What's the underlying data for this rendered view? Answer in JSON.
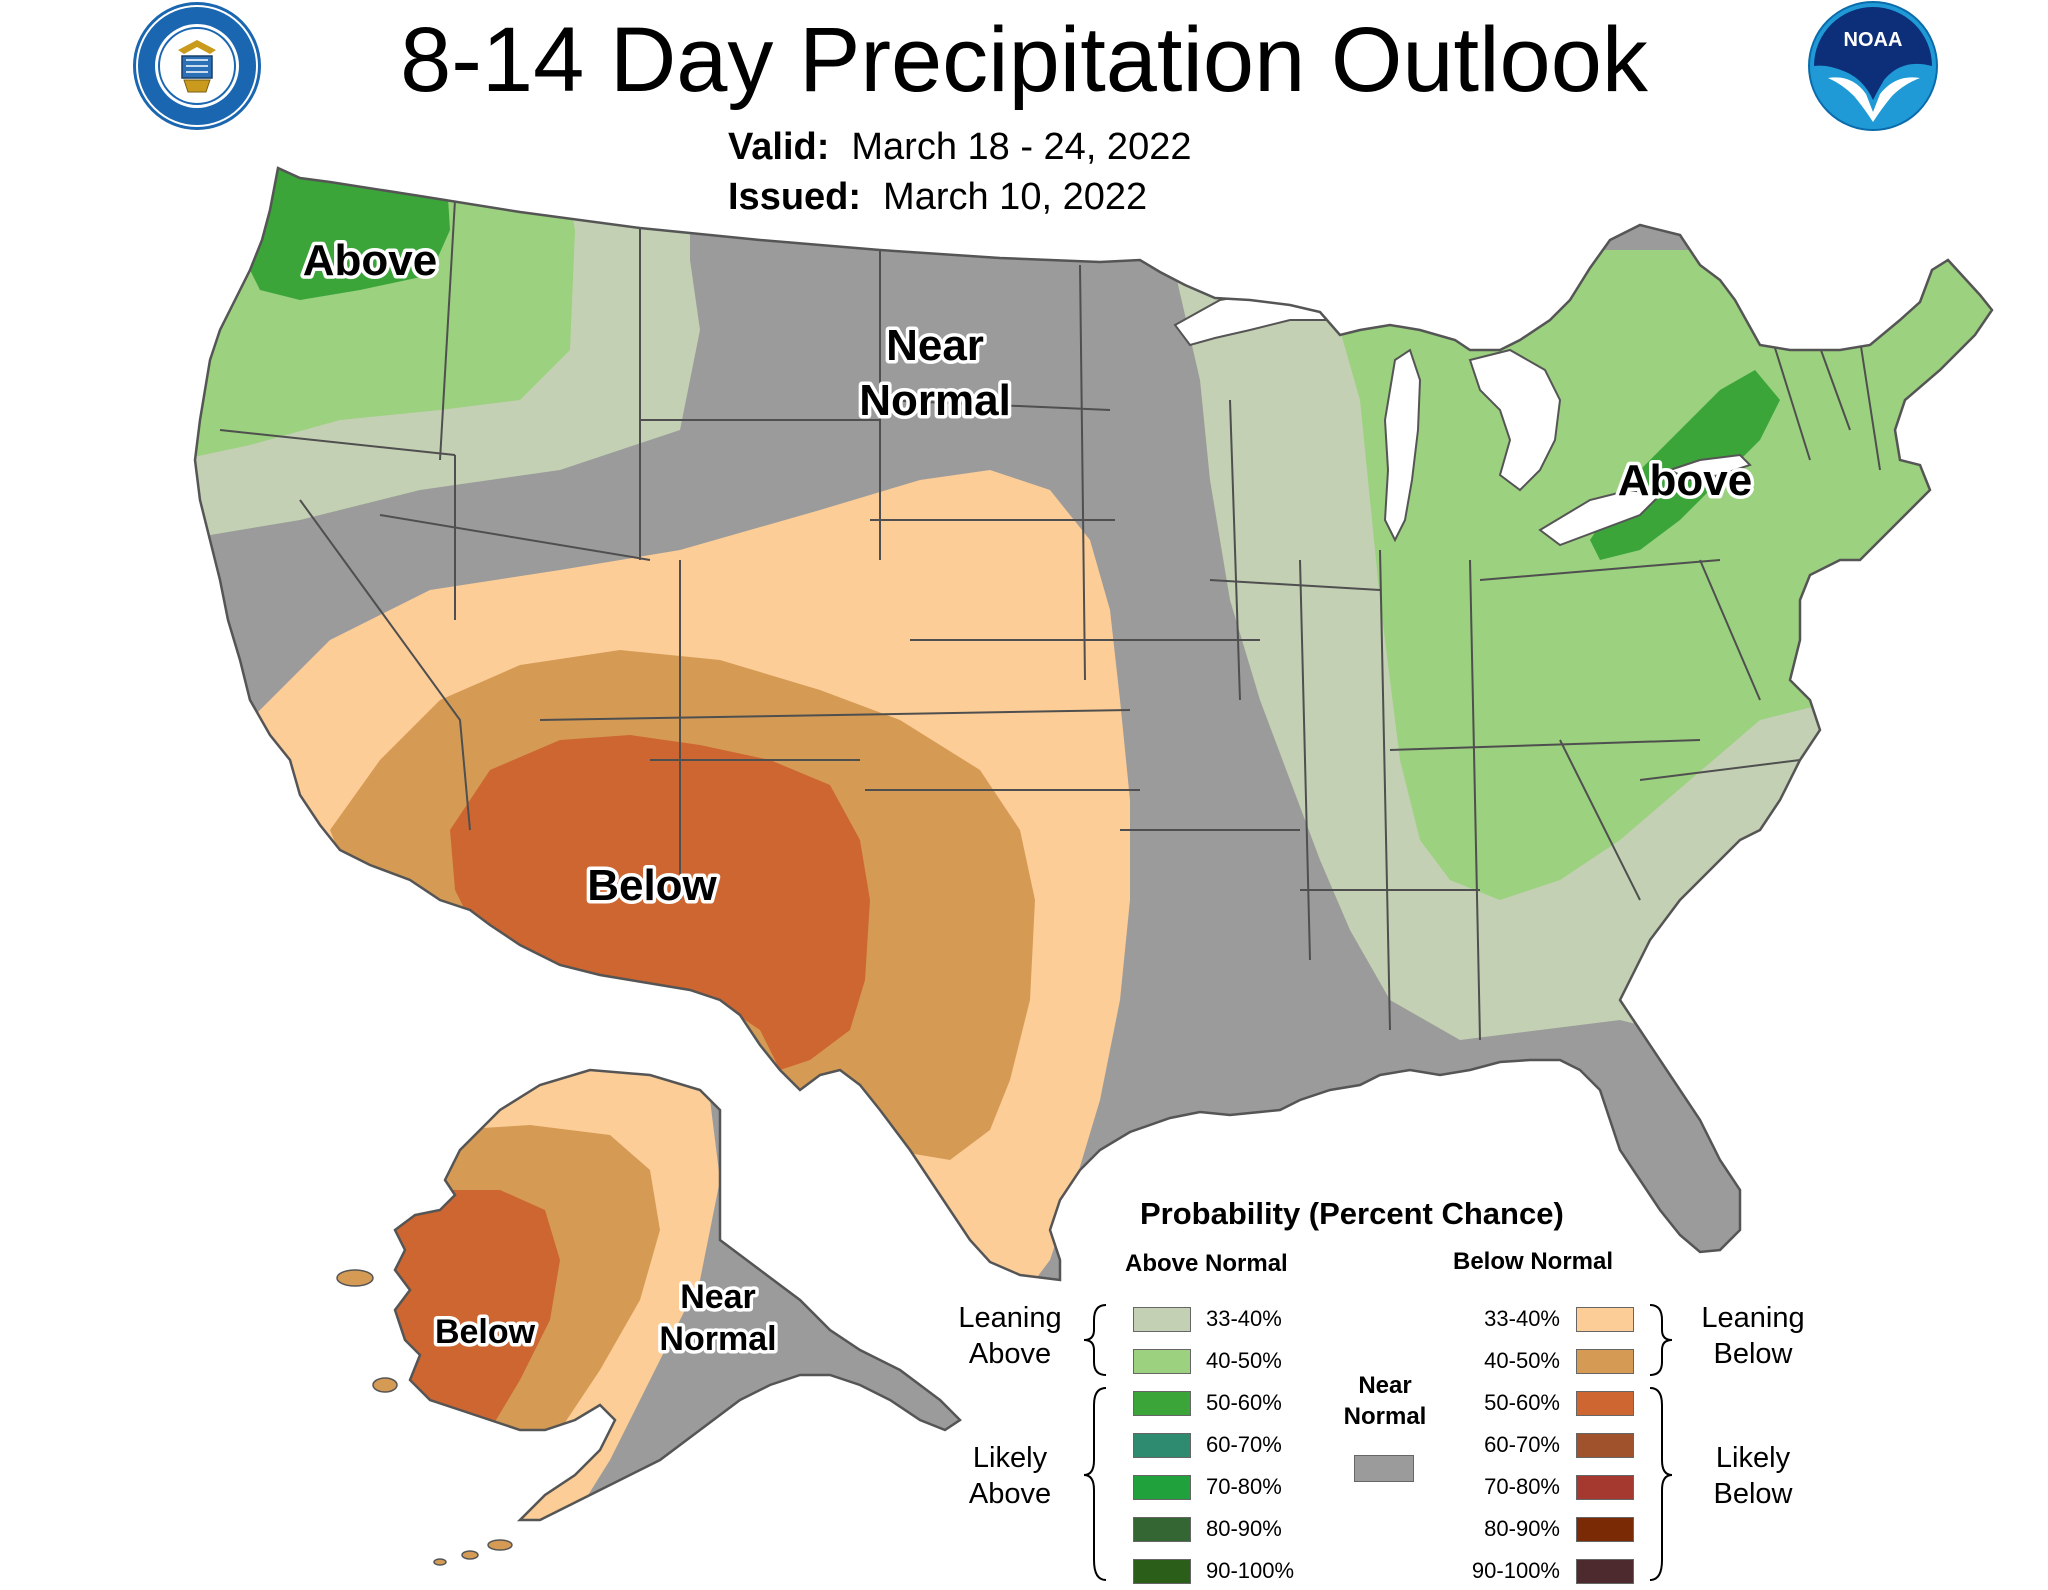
{
  "header": {
    "title": "8-14 Day Precipitation Outlook",
    "valid_label": "Valid:",
    "valid_value": "March 18 - 24, 2022",
    "issued_label": "Issued:",
    "issued_value": "March 10, 2022",
    "left_logo": "department-of-commerce-seal",
    "left_logo_text": "DEPARTMENT OF COMMERCE · UNITED STATES OF AMERICA",
    "right_logo": "noaa-logo",
    "right_logo_text": "NOAA"
  },
  "map": {
    "labels": {
      "above_nw": "Above",
      "near_normal_1": "Near",
      "near_normal_2": "Normal",
      "above_ne": "Above",
      "below_sw": "Below",
      "below_ak": "Below",
      "ak_near_1": "Near",
      "ak_near_2": "Normal"
    },
    "colors": {
      "above_33_40": "#c3d0b3",
      "above_40_50": "#9bd17f",
      "above_50_60": "#3ba53a",
      "near_normal": "#9b9b9b",
      "below_33_40": "#fdcd97",
      "below_40_50": "#d59b55",
      "below_50_60": "#cd6630",
      "land_outline": "#555555",
      "water": "#ffffff"
    }
  },
  "legend": {
    "title": "Probability (Percent Chance)",
    "above_header": "Above Normal",
    "below_header": "Below Normal",
    "near_header_1": "Near",
    "near_header_2": "Normal",
    "leaning_above_1": "Leaning",
    "leaning_above_2": "Above",
    "likely_above_1": "Likely",
    "likely_above_2": "Above",
    "leaning_below_1": "Leaning",
    "leaning_below_2": "Below",
    "likely_below_1": "Likely",
    "likely_below_2": "Below",
    "above_items": [
      {
        "label": "33-40%",
        "color": "#c3d0b3"
      },
      {
        "label": "40-50%",
        "color": "#9bd17f"
      },
      {
        "label": "50-60%",
        "color": "#3ba53a"
      },
      {
        "label": "60-70%",
        "color": "#2e8b6f"
      },
      {
        "label": "70-80%",
        "color": "#20a13c"
      },
      {
        "label": "80-90%",
        "color": "#336633"
      },
      {
        "label": "90-100%",
        "color": "#2b5e19"
      }
    ],
    "below_items": [
      {
        "label": "33-40%",
        "color": "#fdcd97"
      },
      {
        "label": "40-50%",
        "color": "#d59b55"
      },
      {
        "label": "50-60%",
        "color": "#cd6630"
      },
      {
        "label": "60-70%",
        "color": "#a0522d"
      },
      {
        "label": "70-80%",
        "color": "#a5382f"
      },
      {
        "label": "80-90%",
        "color": "#7b2a06"
      },
      {
        "label": "90-100%",
        "color": "#4d2a2e"
      }
    ],
    "near_color": "#9b9b9b"
  }
}
